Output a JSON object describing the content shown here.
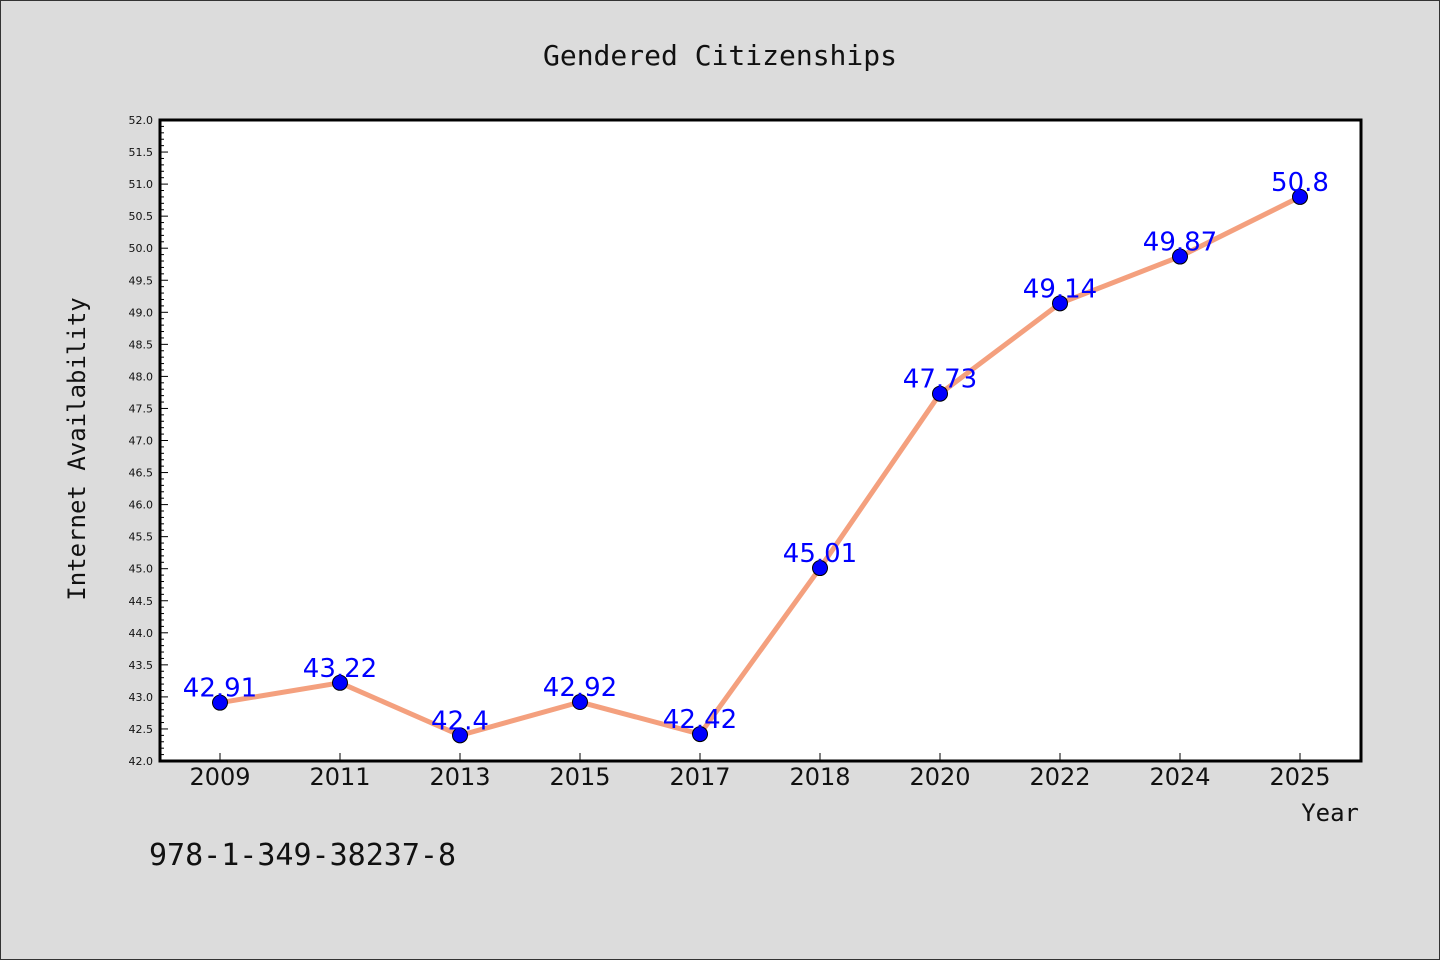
{
  "footnote": "978-1-349-38237-8",
  "colors": {
    "background": "#dcdcdc",
    "plot_background": "#ffffff",
    "line": "#f4a07e",
    "marker": "#0000ff",
    "data_label": "#0000ff"
  },
  "chart_data": {
    "type": "line",
    "title": "Gendered Citizenships",
    "xlabel": "Year",
    "ylabel": "Internet Availability",
    "categories": [
      "2009",
      "2011",
      "2013",
      "2015",
      "2017",
      "2018",
      "2020",
      "2022",
      "2024",
      "2025"
    ],
    "series": [
      {
        "values": [
          42.91,
          43.22,
          42.4,
          42.92,
          42.42,
          45.01,
          47.73,
          49.14,
          49.87,
          50.8
        ],
        "labels": [
          "42.91",
          "43.22",
          "42.4",
          "42.92",
          "42.42",
          "45.01",
          "47.73",
          "49.14",
          "49.87",
          "50.8"
        ]
      }
    ],
    "ylim": [
      42.0,
      52.0
    ],
    "yticks": [
      "42.0",
      "42.5",
      "43.0",
      "43.5",
      "44.0",
      "44.5",
      "45.0",
      "45.5",
      "46.0",
      "46.5",
      "47.0",
      "47.5",
      "48.0",
      "48.5",
      "49.0",
      "49.5",
      "50.0",
      "50.5",
      "51.0",
      "51.5",
      "52.0"
    ],
    "grid": false,
    "legend": "none"
  }
}
